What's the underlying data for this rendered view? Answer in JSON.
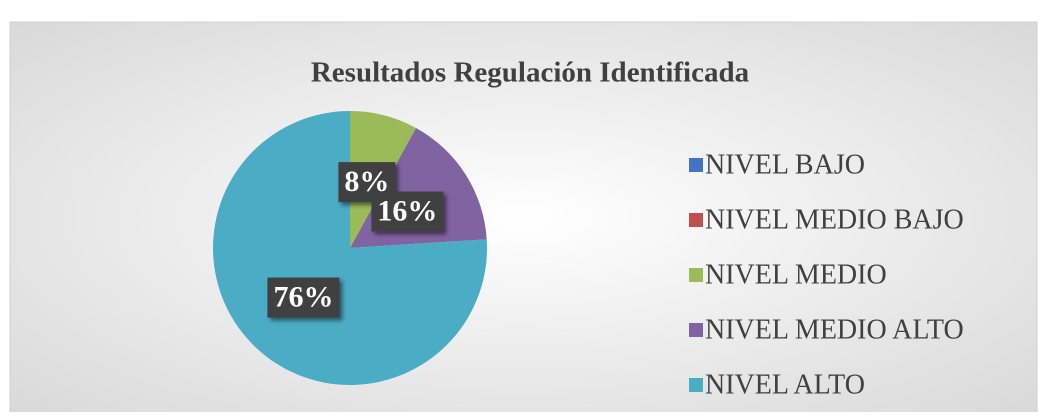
{
  "chart_data": {
    "type": "pie",
    "title": "Resultados Regulación Identificada",
    "categories": [
      "NIVEL BAJO",
      "NIVEL MEDIO BAJO",
      "NIVEL MEDIO",
      "NIVEL MEDIO ALTO",
      "NIVEL ALTO"
    ],
    "values": [
      0,
      0,
      8,
      16,
      76
    ],
    "value_labels": [
      null,
      null,
      "8%",
      "16%",
      "76%"
    ],
    "colors": [
      "#4472c4",
      "#c0504d",
      "#9bbb59",
      "#8064a2",
      "#4bacc6"
    ],
    "legend": "right"
  }
}
